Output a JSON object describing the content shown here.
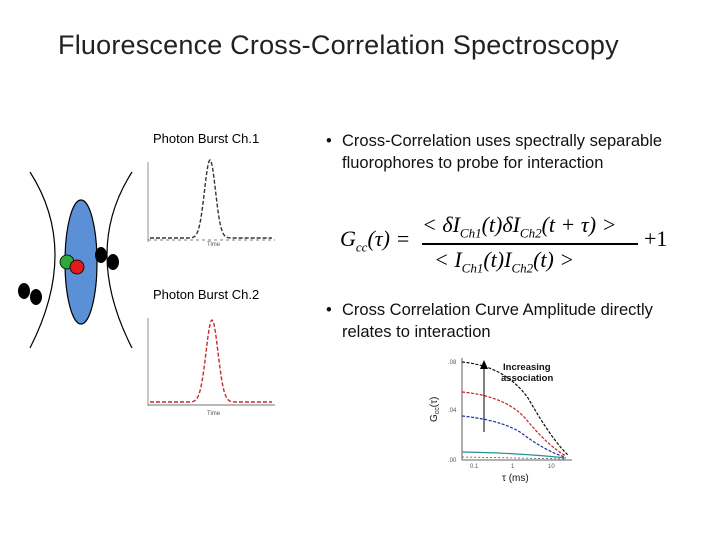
{
  "slide": {
    "title": "Fluorescence Cross-Correlation Spectroscopy",
    "label_ch1": "Photon Burst Ch.1",
    "label_ch2": "Photon Burst Ch.2",
    "bullets": [
      "Cross-Correlation uses spectrally separable fluorophores to probe for interaction",
      "Cross Correlation Curve Amplitude directly relates to interaction"
    ],
    "bullet_symbol": "•",
    "formula": {
      "lhs": "G",
      "lhs_sub": "cc",
      "lhs_arg": "(τ) =",
      "numerator": "< δI",
      "num_sub1": "Ch1",
      "num_mid": "(t)δI",
      "num_sub2": "Ch2",
      "num_end": "(t + τ) >",
      "denominator": "< I",
      "den_sub1": "Ch1",
      "den_mid": "(t)I",
      "den_sub2": "Ch2",
      "den_end": "(t) >",
      "plus_one": "+1"
    },
    "colors": {
      "focal_volume": "#5b8fd6",
      "ch1_curve": "#333333",
      "ch2_curve": "#cc2a2a",
      "dye_green": "#2ea836",
      "dye_red": "#e01b1b",
      "curve_black": "#111111",
      "curve_red": "#c81e1e",
      "curve_blue": "#1e2fa0",
      "curve_teal": "#2a9090"
    },
    "graph": {
      "annotation": "Increasing association",
      "annotation_line1": "Increasing",
      "annotation_line2": "association",
      "ylabel": "G",
      "ylabel_sub": "cc",
      "ylabel_arg": "(τ)",
      "xlabel": "τ (ms)",
      "ytick_top": ".08",
      "ytick_mid": ".04",
      "ytick_bot": ".00",
      "xtick_1": "0.1",
      "xtick_2": "1",
      "xtick_3": "10",
      "time_label_ch1": "Time",
      "time_label_ch2": "Time"
    }
  }
}
